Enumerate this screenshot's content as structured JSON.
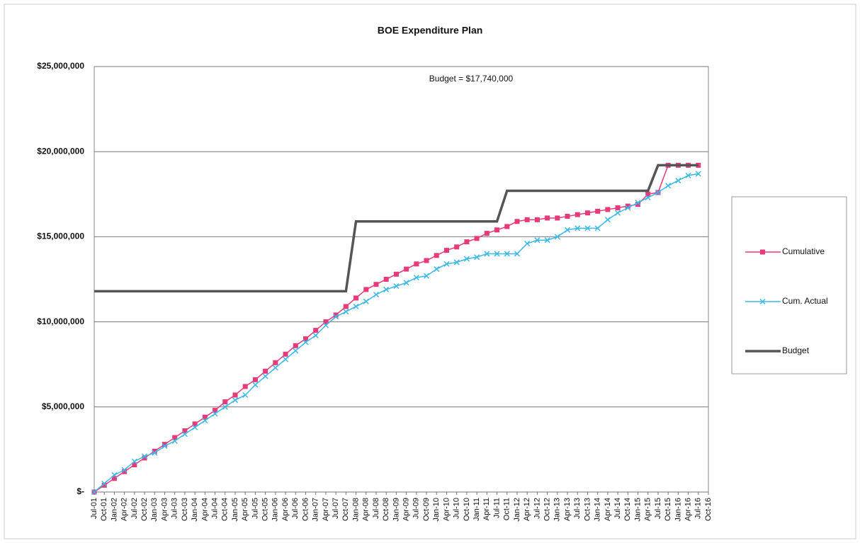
{
  "chart_data": {
    "type": "line",
    "title": "BOE Expenditure Plan",
    "annotation": "Budget = $17,740,000",
    "categories": [
      "Jul-01",
      "Oct-01",
      "Jan-02",
      "Apr-02",
      "Jul-02",
      "Oct-02",
      "Jan-03",
      "Apr-03",
      "Jul-03",
      "Oct-03",
      "Jan-04",
      "Apr-04",
      "Jul-04",
      "Oct-04",
      "Jan-05",
      "Apr-05",
      "Jul-05",
      "Oct-05",
      "Jan-06",
      "Apr-06",
      "Jul-06",
      "Oct-06",
      "Jan-07",
      "Apr-07",
      "Jul-07",
      "Oct-07",
      "Jan-08",
      "Apr-08",
      "Jul-08",
      "Oct-08",
      "Jan-09",
      "Apr-09",
      "Jul-09",
      "Oct-09",
      "Jan-10",
      "Apr-10",
      "Jul-10",
      "Oct-10",
      "Jan-11",
      "Apr-11",
      "Jul-11",
      "Oct-11",
      "Jan-12",
      "Apr-12",
      "Jul-12",
      "Oct-12",
      "Jan-13",
      "Apr-13",
      "Jul-13",
      "Oct-13",
      "Jan-14",
      "Apr-14",
      "Jul-14",
      "Oct-14",
      "Jan-15",
      "Apr-15",
      "Jul-15",
      "Oct-15",
      "Jan-16",
      "Apr-16",
      "Jul-16",
      "Oct-16"
    ],
    "series": [
      {
        "name": "Cumulative",
        "color": "#e8397a",
        "marker": "square",
        "values": [
          0,
          400000,
          800000,
          1200000,
          1600000,
          2000000,
          2400000,
          2800000,
          3200000,
          3600000,
          4000000,
          4400000,
          4800000,
          5300000,
          5700000,
          6200000,
          6600000,
          7100000,
          7600000,
          8100000,
          8600000,
          9000000,
          9500000,
          10000000,
          10400000,
          10900000,
          11400000,
          11900000,
          12200000,
          12500000,
          12800000,
          13100000,
          13400000,
          13600000,
          13900000,
          14200000,
          14400000,
          14700000,
          14900000,
          15200000,
          15400000,
          15600000,
          15900000,
          16000000,
          16000000,
          16100000,
          16100000,
          16200000,
          16300000,
          16400000,
          16500000,
          16600000,
          16700000,
          16800000,
          16900000,
          17500000,
          17600000,
          19200000,
          19200000,
          19200000,
          19200000,
          null
        ]
      },
      {
        "name": "Cum. Actual",
        "color": "#3bb8e8",
        "marker": "x",
        "values": [
          0,
          500000,
          1000000,
          1300000,
          1800000,
          2100000,
          2300000,
          2700000,
          3000000,
          3400000,
          3800000,
          4200000,
          4600000,
          5000000,
          5400000,
          5700000,
          6300000,
          6800000,
          7300000,
          7800000,
          8300000,
          8800000,
          9200000,
          9800000,
          10300000,
          10600000,
          10900000,
          11200000,
          11600000,
          11900000,
          12100000,
          12300000,
          12600000,
          12700000,
          13100000,
          13400000,
          13500000,
          13700000,
          13800000,
          14000000,
          14000000,
          14000000,
          14000000,
          14600000,
          14800000,
          14800000,
          15000000,
          15400000,
          15500000,
          15500000,
          15500000,
          16000000,
          16400000,
          16700000,
          17000000,
          17300000,
          17600000,
          18000000,
          18300000,
          18600000,
          18700000,
          null
        ]
      },
      {
        "name": "Budget",
        "color": "#555555",
        "marker": "none",
        "values": [
          11800000,
          11800000,
          11800000,
          11800000,
          11800000,
          11800000,
          11800000,
          11800000,
          11800000,
          11800000,
          11800000,
          11800000,
          11800000,
          11800000,
          11800000,
          11800000,
          11800000,
          11800000,
          11800000,
          11800000,
          11800000,
          11800000,
          11800000,
          11800000,
          11800000,
          11800000,
          15900000,
          15900000,
          15900000,
          15900000,
          15900000,
          15900000,
          15900000,
          15900000,
          15900000,
          15900000,
          15900000,
          15900000,
          15900000,
          15900000,
          15900000,
          17700000,
          17700000,
          17700000,
          17700000,
          17700000,
          17700000,
          17700000,
          17700000,
          17700000,
          17700000,
          17700000,
          17700000,
          17700000,
          17700000,
          17700000,
          19200000,
          19200000,
          19200000,
          19200000,
          19200000,
          null
        ]
      }
    ],
    "ylim": [
      0,
      25000000
    ],
    "yticks": [
      {
        "value": 0,
        "label": "$-"
      },
      {
        "value": 5000000,
        "label": "$5,000,000"
      },
      {
        "value": 10000000,
        "label": "$10,000,000"
      },
      {
        "value": 15000000,
        "label": "$15,000,000"
      },
      {
        "value": 20000000,
        "label": "$20,000,000"
      },
      {
        "value": 25000000,
        "label": "$25,000,000"
      }
    ],
    "grid": true,
    "legend": "right"
  }
}
